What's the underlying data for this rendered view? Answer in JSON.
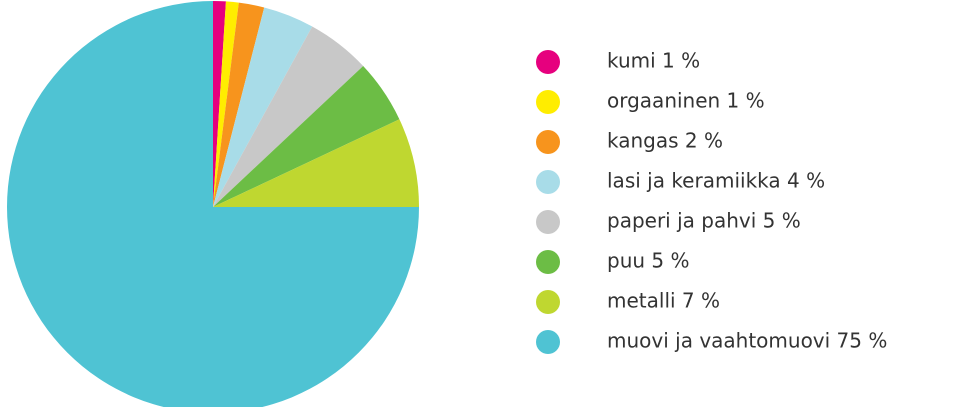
{
  "chart_data": {
    "type": "pie",
    "categories": [
      "kumi 1 %",
      "orgaaninen 1 %",
      "kangas 2 %",
      "lasi ja keramiikka 4 %",
      "paperi ja pahvi 5 %",
      "puu 5 %",
      "metalli 7 %",
      "muovi ja vaahtomuovi 75 %"
    ],
    "values": [
      1,
      1,
      2,
      4,
      5,
      5,
      7,
      75
    ],
    "colors": [
      "#e6007e",
      "#ffed00",
      "#f7941d",
      "#a8dce8",
      "#c8c8c8",
      "#6cbd45",
      "#bfd730",
      "#4fc3d3"
    ],
    "legend": "right"
  }
}
